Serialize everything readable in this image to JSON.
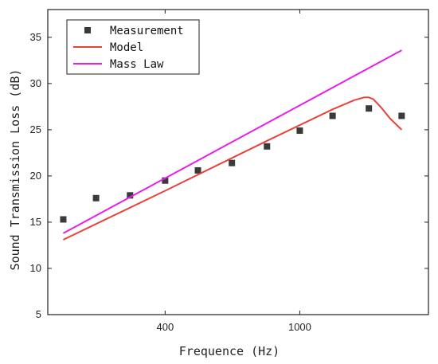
{
  "chart_data": {
    "type": "line",
    "xlabel": "Frequence (Hz)",
    "ylabel": "Sound Transmission Loss (dB)",
    "x_scale": "log",
    "xlim": [
      180,
      2400
    ],
    "ylim": [
      5,
      38
    ],
    "x_ticks": [
      400,
      1000
    ],
    "x_tick_labels": [
      "400",
      "1000"
    ],
    "y_ticks": [
      5,
      10,
      15,
      20,
      25,
      30,
      35
    ],
    "y_tick_labels": [
      "5",
      "10",
      "15",
      "20",
      "25",
      "30",
      "35"
    ],
    "grid": false,
    "legend_position": "top-left",
    "legend": [
      "Measurement",
      "Model",
      "Mass Law"
    ],
    "series": [
      {
        "name": "Measurement",
        "kind": "scatter",
        "color": "#3a3a3a",
        "x": [
          200,
          250,
          315,
          400,
          500,
          630,
          800,
          1000,
          1250,
          1600,
          2000
        ],
        "y": [
          15.3,
          17.6,
          17.9,
          19.5,
          20.6,
          21.4,
          23.2,
          24.9,
          26.5,
          27.3,
          26.5
        ]
      },
      {
        "name": "Model",
        "kind": "line",
        "color": "#e8433a",
        "x": [
          200,
          400,
          800,
          1250,
          1450,
          1550,
          1600,
          1650,
          1750,
          1850,
          2000
        ],
        "y": [
          13.1,
          18.4,
          23.8,
          27.2,
          28.2,
          28.5,
          28.5,
          28.3,
          27.3,
          26.2,
          25.0
        ]
      },
      {
        "name": "Mass Law",
        "kind": "line",
        "color": "#e81ee8",
        "x": [
          200,
          2000
        ],
        "y": [
          13.8,
          33.6
        ]
      }
    ]
  }
}
